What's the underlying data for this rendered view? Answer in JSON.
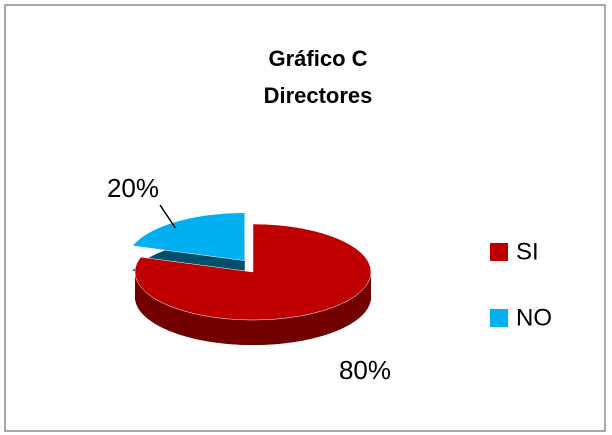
{
  "chart_data": {
    "type": "pie",
    "title": "Gráfico C",
    "subtitle": "Directores",
    "categories": [
      "SI",
      "NO"
    ],
    "values": [
      80,
      20
    ],
    "value_labels": [
      "80%",
      "20%"
    ],
    "colors": [
      "#c00000",
      "#00b0f0"
    ],
    "legend": "right"
  }
}
